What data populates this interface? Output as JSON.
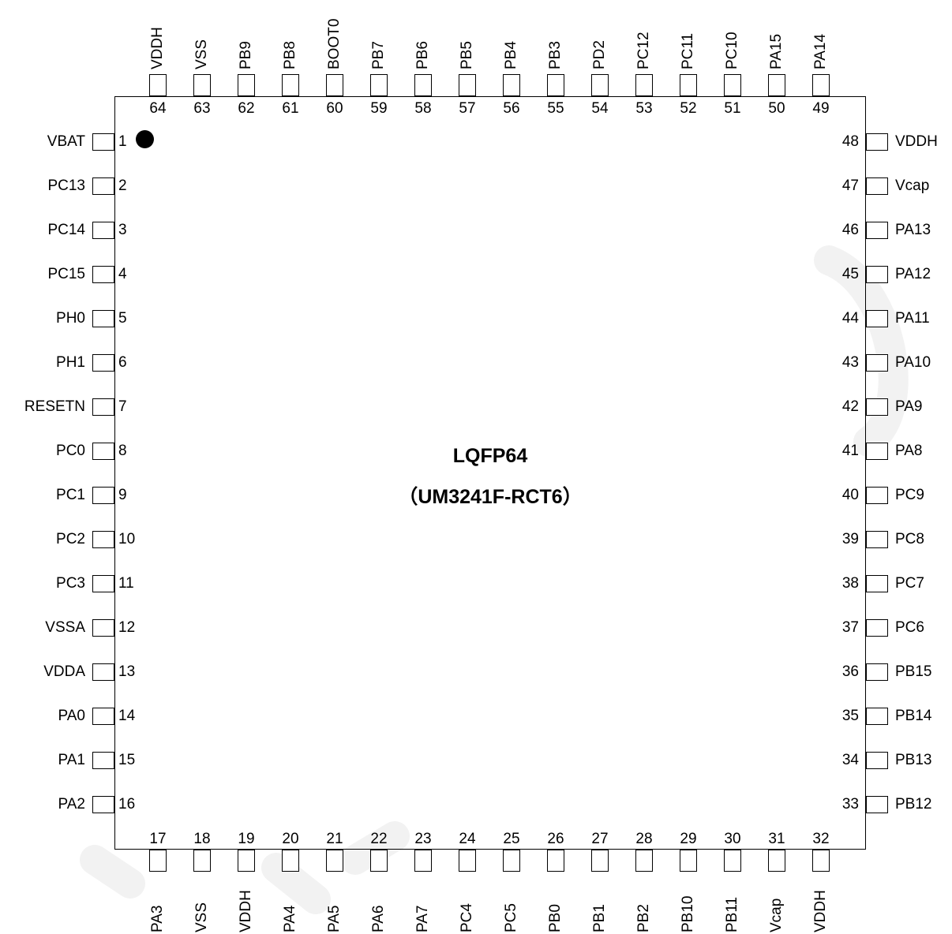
{
  "chip": {
    "package": "LQFP64",
    "part": "（UM3241F-RCT6）"
  },
  "pins": {
    "left": [
      {
        "num": "1",
        "name": "VBAT"
      },
      {
        "num": "2",
        "name": "PC13"
      },
      {
        "num": "3",
        "name": "PC14"
      },
      {
        "num": "4",
        "name": "PC15"
      },
      {
        "num": "5",
        "name": "PH0"
      },
      {
        "num": "6",
        "name": "PH1"
      },
      {
        "num": "7",
        "name": "RESETN"
      },
      {
        "num": "8",
        "name": "PC0"
      },
      {
        "num": "9",
        "name": "PC1"
      },
      {
        "num": "10",
        "name": "PC2"
      },
      {
        "num": "11",
        "name": "PC3"
      },
      {
        "num": "12",
        "name": "VSSA"
      },
      {
        "num": "13",
        "name": "VDDA"
      },
      {
        "num": "14",
        "name": "PA0"
      },
      {
        "num": "15",
        "name": "PA1"
      },
      {
        "num": "16",
        "name": "PA2"
      }
    ],
    "bottom": [
      {
        "num": "17",
        "name": "PA3"
      },
      {
        "num": "18",
        "name": "VSS"
      },
      {
        "num": "19",
        "name": "VDDH"
      },
      {
        "num": "20",
        "name": "PA4"
      },
      {
        "num": "21",
        "name": "PA5"
      },
      {
        "num": "22",
        "name": "PA6"
      },
      {
        "num": "23",
        "name": "PA7"
      },
      {
        "num": "24",
        "name": "PC4"
      },
      {
        "num": "25",
        "name": "PC5"
      },
      {
        "num": "26",
        "name": "PB0"
      },
      {
        "num": "27",
        "name": "PB1"
      },
      {
        "num": "28",
        "name": "PB2"
      },
      {
        "num": "29",
        "name": "PB10"
      },
      {
        "num": "30",
        "name": "PB11"
      },
      {
        "num": "31",
        "name": "Vcap"
      },
      {
        "num": "32",
        "name": "VDDH"
      }
    ],
    "right": [
      {
        "num": "48",
        "name": "VDDH"
      },
      {
        "num": "47",
        "name": "Vcap"
      },
      {
        "num": "46",
        "name": "PA13"
      },
      {
        "num": "45",
        "name": "PA12"
      },
      {
        "num": "44",
        "name": "PA11"
      },
      {
        "num": "43",
        "name": "PA10"
      },
      {
        "num": "42",
        "name": "PA9"
      },
      {
        "num": "41",
        "name": "PA8"
      },
      {
        "num": "40",
        "name": "PC9"
      },
      {
        "num": "39",
        "name": "PC8"
      },
      {
        "num": "38",
        "name": "PC7"
      },
      {
        "num": "37",
        "name": "PC6"
      },
      {
        "num": "36",
        "name": "PB15"
      },
      {
        "num": "35",
        "name": "PB14"
      },
      {
        "num": "34",
        "name": "PB13"
      },
      {
        "num": "33",
        "name": "PB12"
      }
    ],
    "top": [
      {
        "num": "64",
        "name": "VDDH"
      },
      {
        "num": "63",
        "name": "VSS"
      },
      {
        "num": "62",
        "name": "PB9"
      },
      {
        "num": "61",
        "name": "PB8"
      },
      {
        "num": "60",
        "name": "BOOT0"
      },
      {
        "num": "59",
        "name": "PB7"
      },
      {
        "num": "58",
        "name": "PB6"
      },
      {
        "num": "57",
        "name": "PB5"
      },
      {
        "num": "56",
        "name": "PB4"
      },
      {
        "num": "55",
        "name": "PB3"
      },
      {
        "num": "54",
        "name": "PD2"
      },
      {
        "num": "53",
        "name": "PC12"
      },
      {
        "num": "52",
        "name": "PC11"
      },
      {
        "num": "51",
        "name": "PC10"
      },
      {
        "num": "50",
        "name": "PA15"
      },
      {
        "num": "49",
        "name": "PA14"
      }
    ]
  },
  "colors": {
    "line": "#000000",
    "watermark": "#f2f2f2"
  }
}
